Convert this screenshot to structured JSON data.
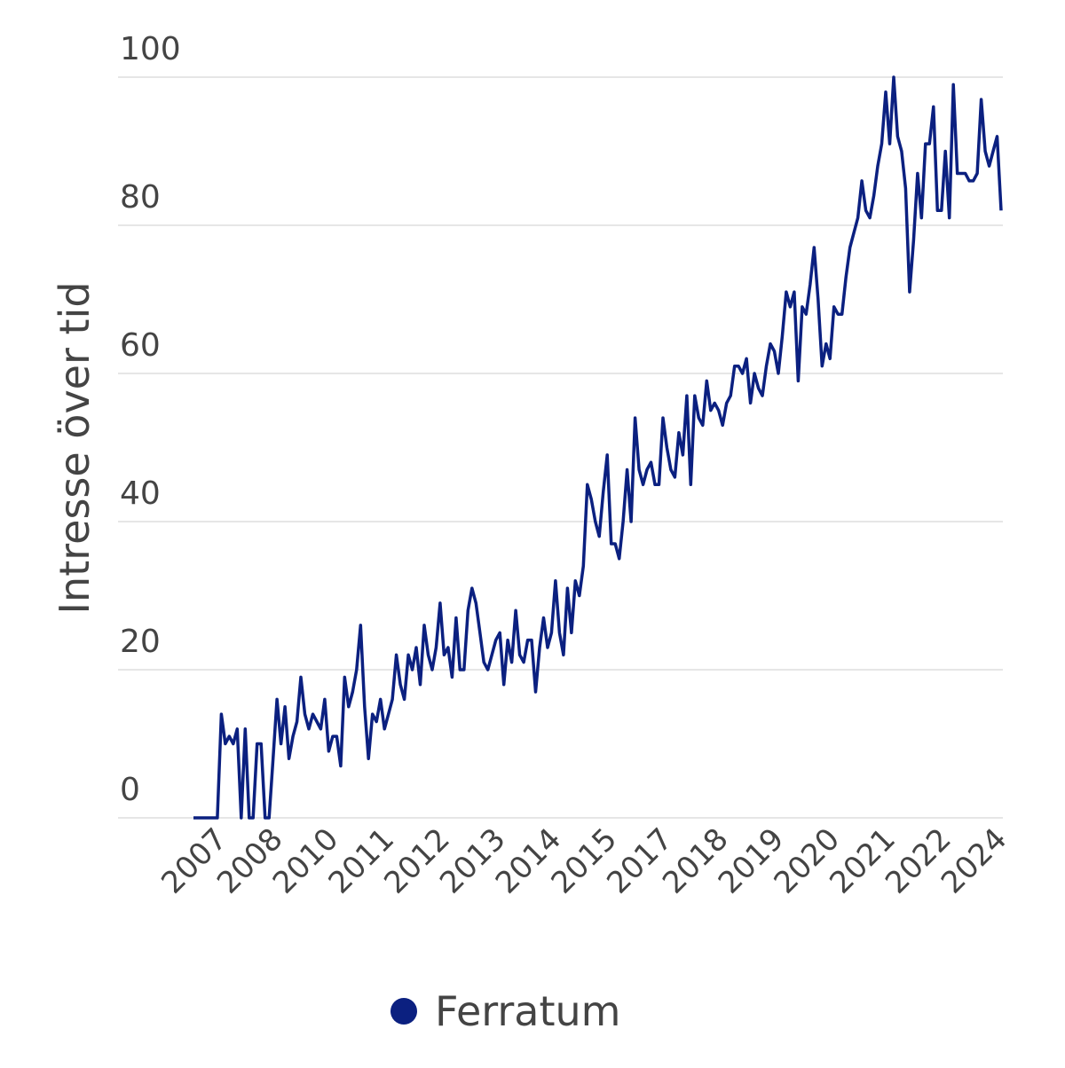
{
  "chart_data": {
    "type": "line",
    "y_label": "Intresse över tid",
    "categories": [
      null,
      null,
      null,
      null,
      null,
      null,
      null,
      "2007",
      null,
      null,
      null,
      null,
      null,
      null,
      null,
      null,
      null,
      null,
      null,
      null,
      null,
      "2008",
      null,
      null,
      null,
      null,
      null,
      null,
      null,
      null,
      null,
      null,
      null,
      null,
      null,
      "2010",
      null,
      null,
      null,
      null,
      null,
      null,
      null,
      null,
      null,
      null,
      null,
      null,
      null,
      "2011",
      null,
      null,
      null,
      null,
      null,
      null,
      null,
      null,
      null,
      null,
      null,
      null,
      null,
      "2012",
      null,
      null,
      null,
      null,
      null,
      null,
      null,
      null,
      null,
      null,
      null,
      null,
      null,
      "2013",
      null,
      null,
      null,
      null,
      null,
      null,
      null,
      null,
      null,
      null,
      null,
      null,
      null,
      "2014",
      null,
      null,
      null,
      null,
      null,
      null,
      null,
      null,
      null,
      null,
      null,
      null,
      null,
      "2015",
      null,
      null,
      null,
      null,
      null,
      null,
      null,
      null,
      null,
      null,
      null,
      null,
      null,
      "2017",
      null,
      null,
      null,
      null,
      null,
      null,
      null,
      null,
      null,
      null,
      null,
      null,
      null,
      "2018",
      null,
      null,
      null,
      null,
      null,
      null,
      null,
      null,
      null,
      null,
      null,
      null,
      null,
      "2019",
      null,
      null,
      null,
      null,
      null,
      null,
      null,
      null,
      null,
      null,
      null,
      null,
      null,
      "2020",
      null,
      null,
      null,
      null,
      null,
      null,
      null,
      null,
      null,
      null,
      null,
      null,
      null,
      "2021",
      null,
      null,
      null,
      null,
      null,
      null,
      null,
      null,
      null,
      null,
      null,
      null,
      null,
      "2022",
      null,
      null,
      null,
      null,
      null,
      null,
      null,
      null,
      null,
      null,
      null,
      null,
      null,
      "2024"
    ],
    "series": [
      {
        "name": "Ferratum",
        "color": "#0b2080",
        "values": [
          0,
          0,
          0,
          0,
          0,
          0,
          0,
          14,
          10,
          11,
          10,
          12,
          0,
          12,
          0,
          0,
          10,
          10,
          0,
          0,
          8,
          16,
          10,
          15,
          8,
          11,
          13,
          19,
          14,
          12,
          14,
          13,
          12,
          16,
          9,
          11,
          11,
          7,
          19,
          15,
          17,
          20,
          26,
          15,
          8,
          14,
          13,
          16,
          12,
          14,
          16,
          22,
          18,
          16,
          22,
          20,
          23,
          18,
          26,
          22,
          20,
          23,
          29,
          22,
          23,
          19,
          27,
          20,
          20,
          28,
          31,
          29,
          25,
          21,
          20,
          22,
          24,
          25,
          18,
          24,
          21,
          28,
          22,
          21,
          24,
          24,
          17,
          23,
          27,
          23,
          25,
          32,
          25,
          22,
          31,
          25,
          32,
          30,
          34,
          45,
          43,
          40,
          38,
          44,
          49,
          37,
          37,
          35,
          40,
          47,
          40,
          54,
          47,
          45,
          47,
          48,
          45,
          45,
          54,
          50,
          47,
          46,
          52,
          49,
          57,
          45,
          57,
          54,
          53,
          59,
          55,
          56,
          55,
          53,
          56,
          57,
          61,
          61,
          60,
          62,
          56,
          60,
          58,
          57,
          61,
          64,
          63,
          60,
          65,
          71,
          69,
          71,
          59,
          69,
          68,
          72,
          77,
          70,
          61,
          64,
          62,
          69,
          68,
          68,
          73,
          77,
          79,
          81,
          86,
          82,
          81,
          84,
          88,
          91,
          98,
          91,
          100,
          92,
          90,
          85,
          71,
          78,
          87,
          81,
          91,
          91,
          96,
          82,
          82,
          90,
          81,
          99,
          87,
          87,
          87,
          86,
          86,
          87,
          97,
          90,
          88,
          90,
          92,
          82
        ]
      }
    ],
    "ylim": [
      0,
      100
    ],
    "yticks": [
      0,
      20,
      40,
      60,
      80,
      100
    ],
    "grid": true
  }
}
